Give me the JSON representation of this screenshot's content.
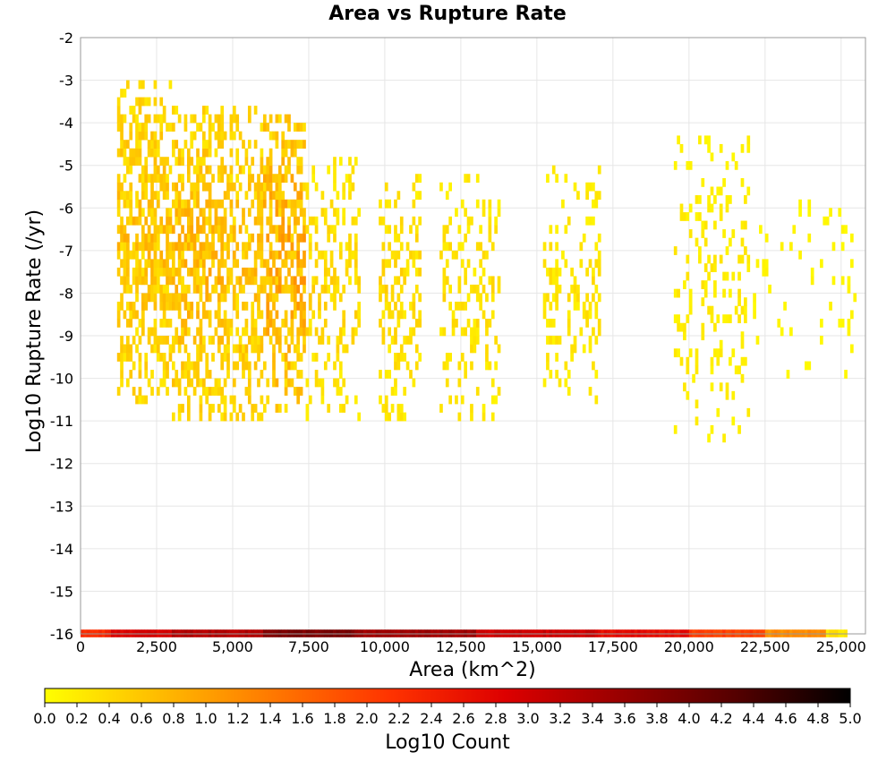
{
  "chart_data": {
    "type": "heatmap",
    "title": "Area vs Rupture Rate",
    "xlabel": "Area (km^2)",
    "ylabel": "Log10 Rupture Rate (/yr)",
    "xlim": [
      0,
      25800
    ],
    "ylim": [
      -16,
      -2
    ],
    "x_ticks": [
      0,
      2500,
      5000,
      7500,
      10000,
      12500,
      15000,
      17500,
      20000,
      22500,
      25000
    ],
    "x_tick_labels": [
      "0",
      "2,500",
      "5,000",
      "7,500",
      "10,000",
      "12,500",
      "15,000",
      "17,500",
      "20,000",
      "22,500",
      "25,000"
    ],
    "y_ticks": [
      -2,
      -3,
      -4,
      -5,
      -6,
      -7,
      -8,
      -9,
      -10,
      -11,
      -12,
      -13,
      -14,
      -15,
      -16
    ],
    "y_tick_labels": [
      "-2",
      "-3",
      "-4",
      "-5",
      "-6",
      "-7",
      "-8",
      "-9",
      "-10",
      "-11",
      "-12",
      "-13",
      "-14",
      "-15",
      "-16"
    ],
    "grid": true,
    "colorbar": {
      "label": "Log10 Count",
      "range": [
        0,
        5
      ],
      "ticks": [
        "0.0",
        "0.2",
        "0.4",
        "0.6",
        "0.8",
        "1.0",
        "1.2",
        "1.4",
        "1.6",
        "1.8",
        "2.0",
        "2.2",
        "2.4",
        "2.6",
        "2.8",
        "3.0",
        "3.2",
        "3.4",
        "3.6",
        "3.8",
        "4.0",
        "4.2",
        "4.4",
        "4.6",
        "4.8",
        "5.0"
      ],
      "colors": [
        "#ffff00",
        "#ffbb00",
        "#ff7700",
        "#ff3300",
        "#dd0000",
        "#990000",
        "#550000",
        "#000000"
      ]
    },
    "bin_size": {
      "x": 100,
      "y": 0.2
    },
    "clusters": [
      {
        "x_range": [
          1200,
          3000
        ],
        "y_range": [
          -10.6,
          -3.2
        ],
        "intensity": 0.85,
        "density": 0.75
      },
      {
        "x_range": [
          3000,
          4700
        ],
        "y_range": [
          -11.0,
          -3.8
        ],
        "intensity": 0.95,
        "density": 0.72
      },
      {
        "x_range": [
          4700,
          6000
        ],
        "y_range": [
          -11.0,
          -3.8
        ],
        "intensity": 0.85,
        "density": 0.6
      },
      {
        "x_range": [
          6000,
          7400
        ],
        "y_range": [
          -10.8,
          -3.9
        ],
        "intensity": 1.15,
        "density": 0.7
      },
      {
        "x_range": [
          7400,
          9200
        ],
        "y_range": [
          -11.0,
          -5.0
        ],
        "intensity": 0.55,
        "density": 0.35
      },
      {
        "x_range": [
          9800,
          11200
        ],
        "y_range": [
          -11.0,
          -5.3
        ],
        "intensity": 0.55,
        "density": 0.4
      },
      {
        "x_range": [
          11800,
          13800
        ],
        "y_range": [
          -11.0,
          -5.3
        ],
        "intensity": 0.45,
        "density": 0.32
      },
      {
        "x_range": [
          15200,
          17100
        ],
        "y_range": [
          -10.6,
          -5.2
        ],
        "intensity": 0.4,
        "density": 0.3
      },
      {
        "x_range": [
          19500,
          22000
        ],
        "y_range": [
          -11.5,
          -4.5
        ],
        "intensity": 0.3,
        "density": 0.22
      },
      {
        "x_range": [
          22000,
          25500
        ],
        "y_range": [
          -10.0,
          -6.0
        ],
        "intensity": 0.15,
        "density": 0.12
      }
    ],
    "bottom_row": {
      "y": -16,
      "segments": [
        {
          "x_range": [
            0,
            1000
          ],
          "value": 2.3
        },
        {
          "x_range": [
            1000,
            3000
          ],
          "value": 2.9
        },
        {
          "x_range": [
            3000,
            6000
          ],
          "value": 3.3
        },
        {
          "x_range": [
            6000,
            9000
          ],
          "value": 3.9
        },
        {
          "x_range": [
            9000,
            13000
          ],
          "value": 3.5
        },
        {
          "x_range": [
            13000,
            17000
          ],
          "value": 3.0
        },
        {
          "x_range": [
            17000,
            20000
          ],
          "value": 2.7
        },
        {
          "x_range": [
            20000,
            22500
          ],
          "value": 2.0
        },
        {
          "x_range": [
            22500,
            24500
          ],
          "value": 1.2
        },
        {
          "x_range": [
            24500,
            25200
          ],
          "value": 0.3
        }
      ]
    }
  }
}
